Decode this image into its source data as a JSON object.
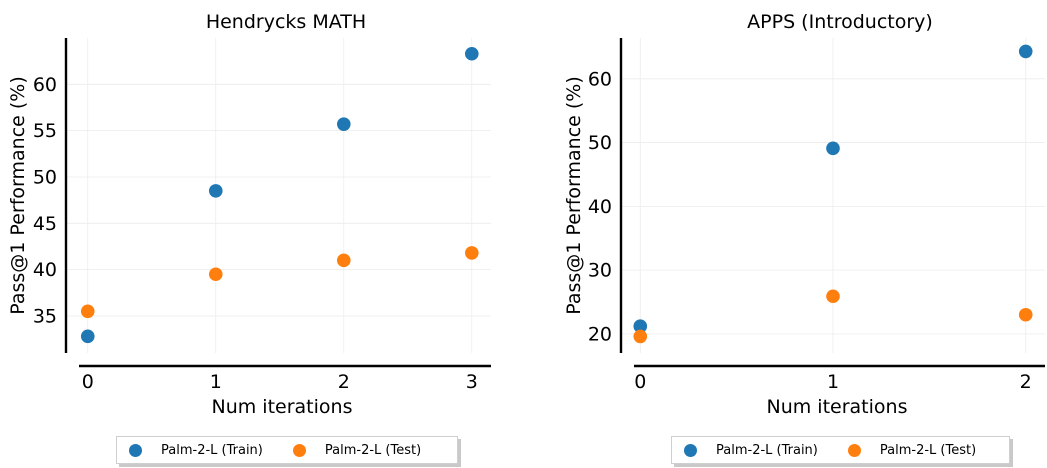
{
  "chart_data": [
    {
      "type": "scatter",
      "title": "Hendrycks MATH",
      "xlabel": "Num iterations",
      "ylabel": "Pass@1 Performance (%)",
      "x": [
        0,
        1,
        2,
        3
      ],
      "xticks": [
        "0",
        "1",
        "2",
        "3"
      ],
      "yticks": [
        "35",
        "40",
        "45",
        "50",
        "55",
        "60"
      ],
      "xlim": [
        -0.17,
        3.15
      ],
      "ylim": [
        31.0,
        65.0
      ],
      "grid": true,
      "legend_position": "bottom-center",
      "series": [
        {
          "name": "Palm-2-L (Train)",
          "color": "#1f77b4",
          "values": [
            32.8,
            48.5,
            55.7,
            63.3
          ]
        },
        {
          "name": "Palm-2-L (Test)",
          "color": "#ff7f0e",
          "values": [
            35.5,
            39.5,
            41.0,
            41.8
          ]
        }
      ]
    },
    {
      "type": "scatter",
      "title": "APPS (Introductory)",
      "xlabel": "Num iterations",
      "ylabel": "Pass@1 Performance (%)",
      "x": [
        0,
        1,
        2
      ],
      "xticks": [
        "0",
        "1",
        "2"
      ],
      "yticks": [
        "20",
        "30",
        "40",
        "50",
        "60"
      ],
      "xlim": [
        -0.1,
        2.1
      ],
      "ylim": [
        17.0,
        66.4
      ],
      "grid": true,
      "legend_position": "bottom-center",
      "series": [
        {
          "name": "Palm-2-L (Train)",
          "color": "#1f77b4",
          "values": [
            21.2,
            49.1,
            64.3
          ]
        },
        {
          "name": "Palm-2-L (Test)",
          "color": "#ff7f0e",
          "values": [
            19.6,
            25.9,
            23.0
          ]
        }
      ]
    }
  ]
}
